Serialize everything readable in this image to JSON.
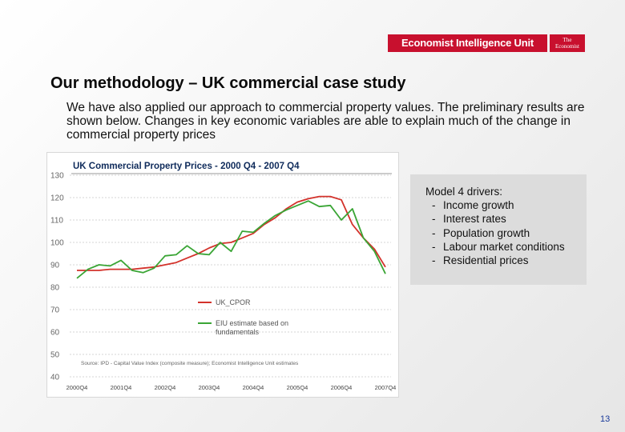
{
  "header": {
    "eiu_logo": "Economist Intelligence Unit",
    "economist_logo": [
      "The",
      "Economist"
    ]
  },
  "slide": {
    "title": "Our methodology – UK commercial case study",
    "intro": "We have also applied our approach to commercial property values. The preliminary results are shown below. Changes in key economic variables are able to explain much of the change in commercial property prices",
    "page_number": "13"
  },
  "drivers": {
    "heading": "Model 4 drivers:",
    "items": [
      "Income growth",
      "Interest rates",
      "Population growth",
      "Labour market conditions",
      "Residential prices"
    ]
  },
  "chart_data": {
    "type": "line",
    "title": "UK Commercial Property Prices - 2000 Q4 - 2007 Q4",
    "source": "Source: IPD - Capital Value Index (composite measure); Economist Intelligence Unit estimates",
    "ylim": [
      40,
      130
    ],
    "y_ticks": [
      "130",
      "120",
      "110",
      "100",
      "90",
      "80",
      "70",
      "60",
      "50",
      "40"
    ],
    "x_ticks": [
      "2000Q4",
      "2001Q4",
      "2002Q4",
      "2003Q4",
      "2004Q4",
      "2005Q4",
      "2006Q4",
      "2007Q4"
    ],
    "x_start": "2000Q4",
    "grid": "horizontal dashed",
    "legend_position": "lower-center",
    "series": [
      {
        "name": "UK_CPOR",
        "color": "#d3322b",
        "values": [
          87.5,
          87.5,
          87.5,
          88,
          88,
          88,
          88.5,
          89,
          90,
          91,
          93,
          95,
          97.5,
          99.5,
          100,
          102,
          104,
          108,
          111,
          115,
          118,
          119.5,
          120.5,
          120.5,
          119,
          108,
          102,
          97,
          89
        ]
      },
      {
        "name": "EIU estimate based on fundamentals",
        "color": "#3aa535",
        "values": [
          84,
          88,
          90,
          89.5,
          92,
          87.5,
          86.5,
          88.5,
          94,
          94.5,
          98.5,
          95,
          94.5,
          100,
          96,
          105,
          104.5,
          108.5,
          112,
          114.5,
          116.5,
          118.5,
          116,
          116.5,
          110,
          115,
          102,
          96,
          86
        ]
      }
    ]
  }
}
